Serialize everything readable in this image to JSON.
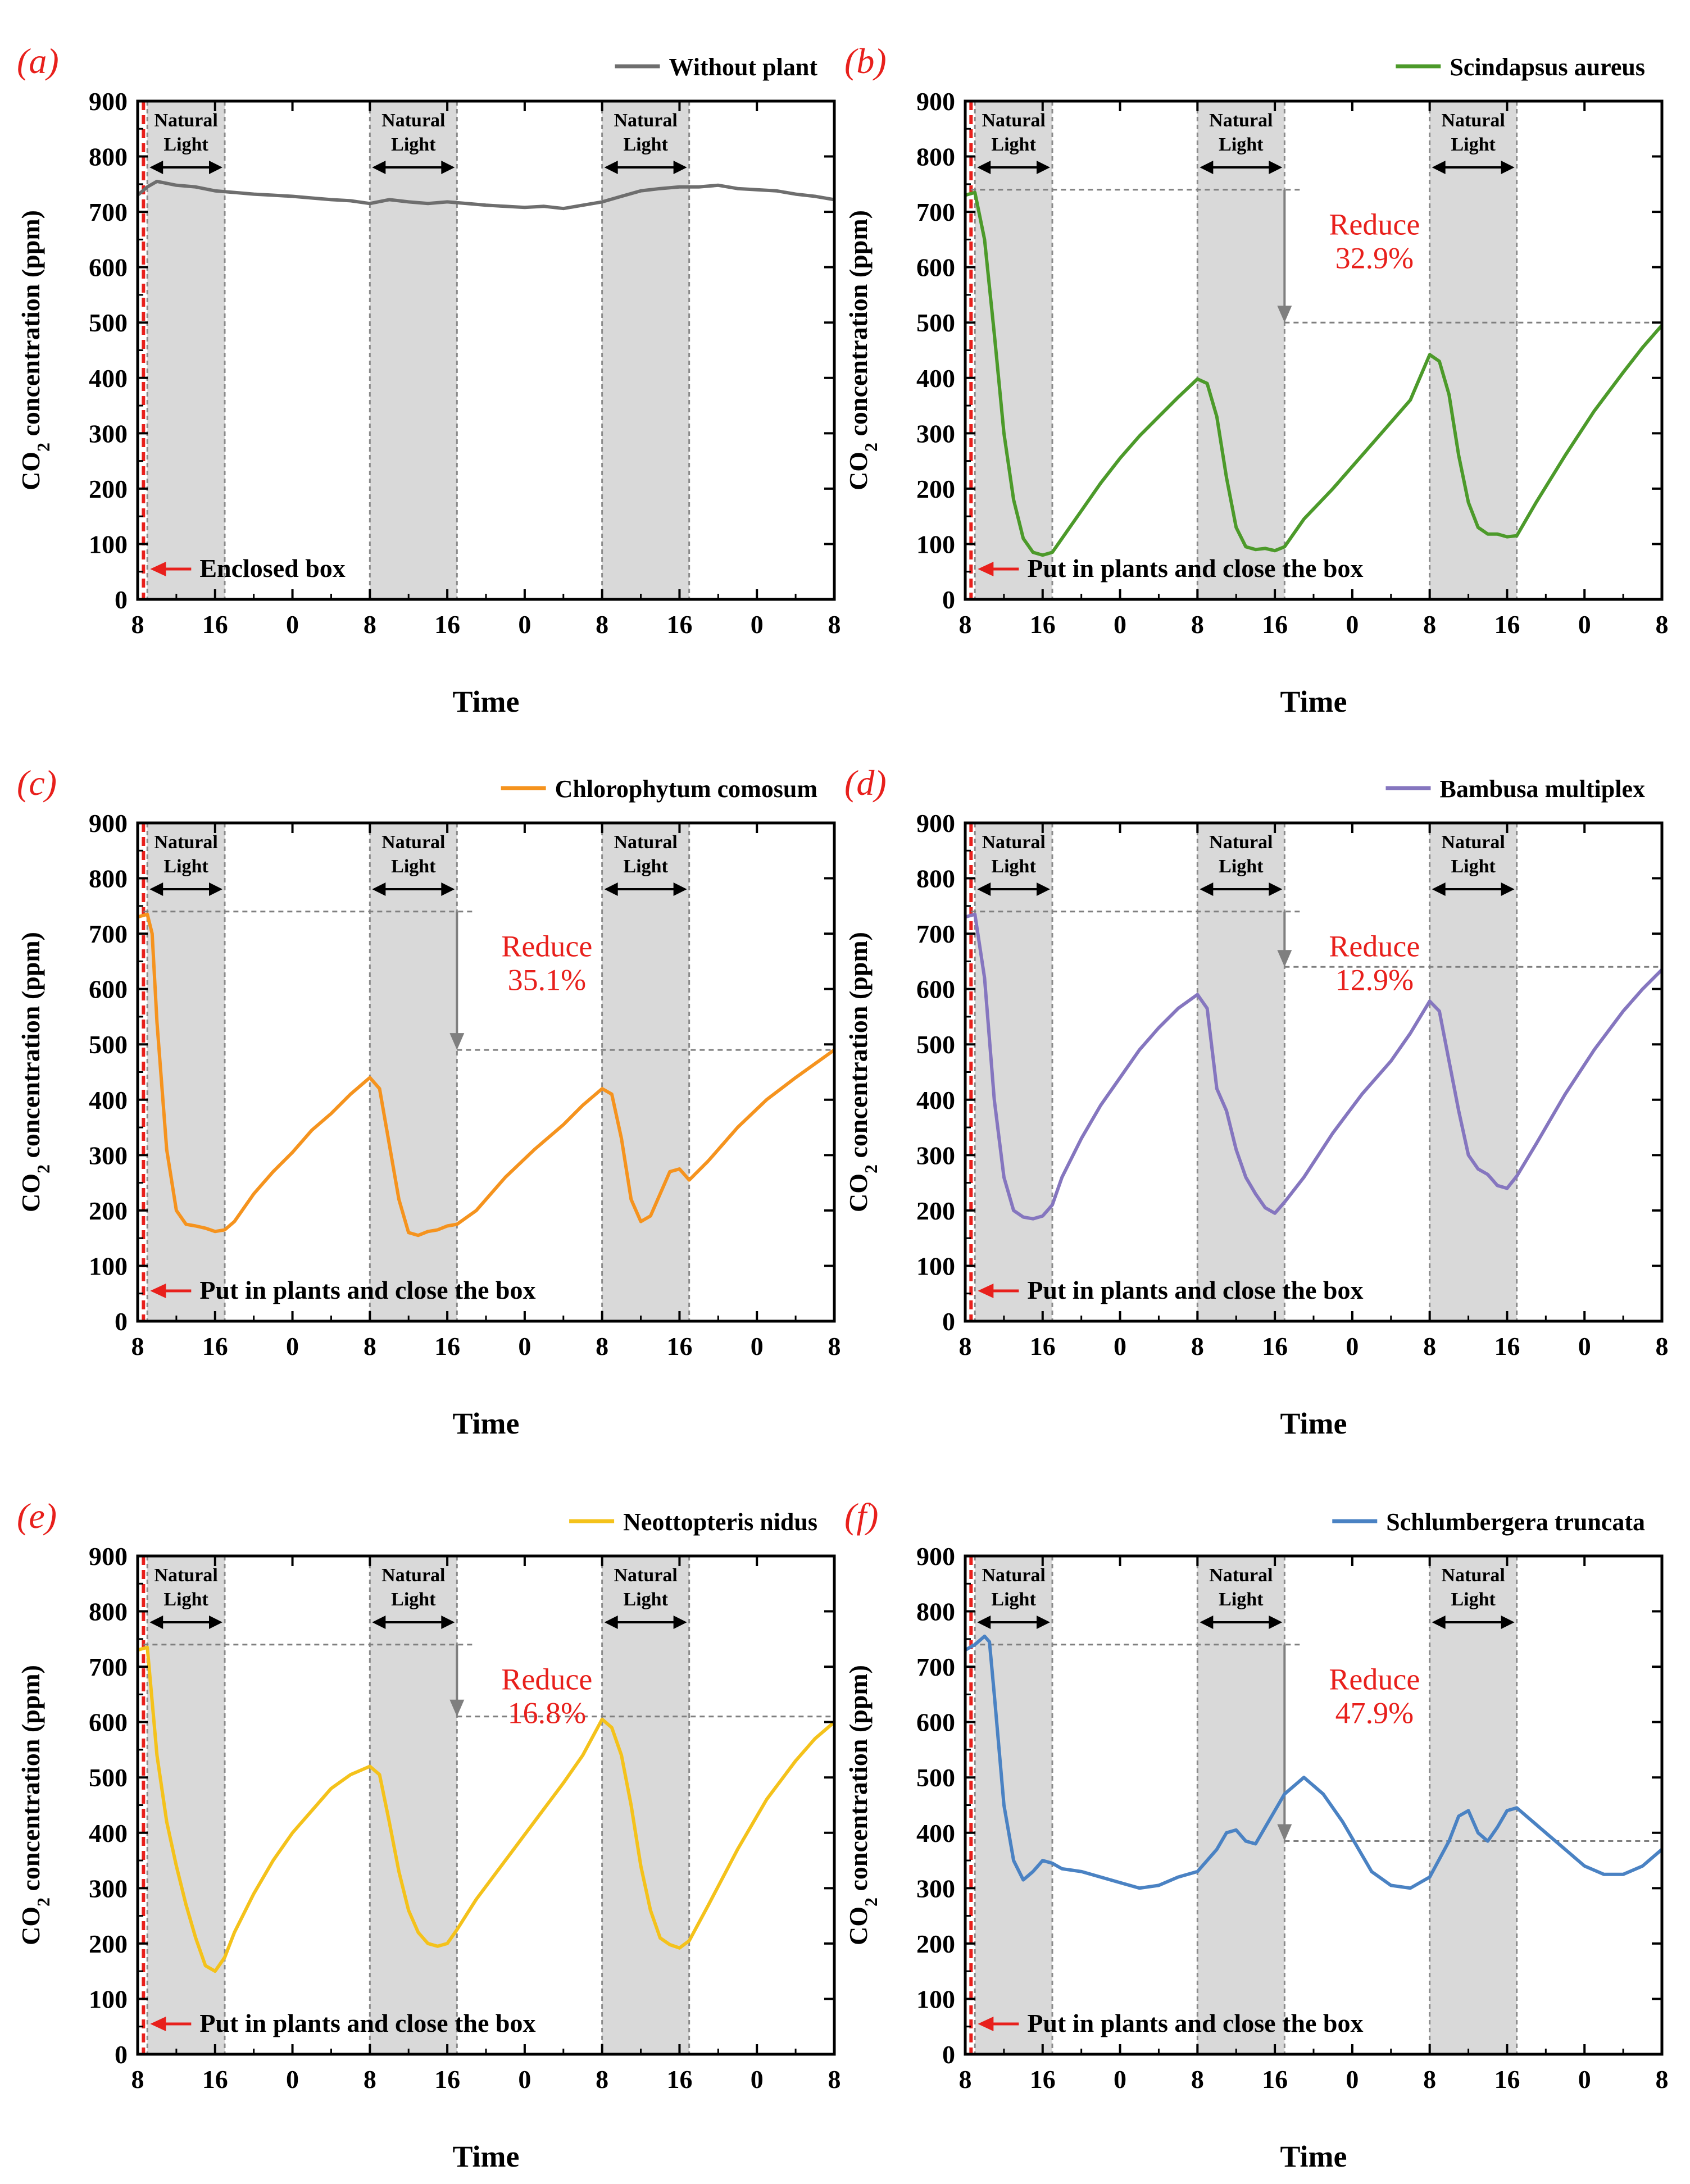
{
  "figure": {
    "common": {
      "ylabel_main": "CO",
      "ylabel_sub": "2",
      "ylabel_rest": " concentration  (ppm)",
      "xlabel": "Time",
      "light_label_1": "Natural",
      "light_label_2": "Light",
      "yticks": [
        0,
        100,
        200,
        300,
        400,
        500,
        600,
        700,
        800,
        900
      ],
      "xtick_labels": [
        "8",
        "16",
        "0",
        "8",
        "16",
        "0",
        "8",
        "16",
        "0",
        "8"
      ],
      "xtick_hours": [
        0,
        8,
        16,
        24,
        32,
        40,
        48,
        56,
        64,
        72
      ],
      "light_periods_hours": [
        [
          1,
          9
        ],
        [
          24,
          33
        ],
        [
          48,
          57
        ]
      ],
      "colors": {
        "marker": "#e8201c",
        "shade": "#d9d9d9",
        "guide": "#7f7f7f"
      }
    }
  },
  "chart_data": [
    {
      "type": "line",
      "panel": "(a)",
      "legend": "Without plant",
      "color": "#6e6e6e",
      "start_note": "Enclosed box",
      "xlabel": "Time",
      "ylabel": "CO2 concentration (ppm)",
      "ylim": [
        0,
        900
      ],
      "x_hours": [
        0,
        1,
        2,
        4,
        6,
        8,
        10,
        12,
        14,
        16,
        18,
        20,
        22,
        24,
        26,
        28,
        30,
        32,
        34,
        36,
        38,
        40,
        42,
        44,
        46,
        48,
        50,
        52,
        54,
        56,
        58,
        60,
        62,
        64,
        66,
        68,
        70,
        72
      ],
      "values": [
        730,
        745,
        755,
        748,
        745,
        738,
        735,
        732,
        730,
        728,
        725,
        722,
        720,
        715,
        722,
        718,
        715,
        718,
        715,
        712,
        710,
        708,
        710,
        706,
        712,
        718,
        728,
        738,
        742,
        745,
        745,
        748,
        742,
        740,
        738,
        732,
        728,
        722
      ],
      "reduce": null
    },
    {
      "type": "line",
      "panel": "(b)",
      "legend": "Scindapsus aureus",
      "color": "#4c9a2a",
      "start_note": "Put in plants and close the box",
      "xlabel": "Time",
      "ylabel": "CO2 concentration (ppm)",
      "ylim": [
        0,
        900
      ],
      "x_hours": [
        0,
        1,
        2,
        3,
        4,
        5,
        6,
        7,
        8,
        9,
        10,
        12,
        14,
        16,
        18,
        20,
        22,
        24,
        25,
        26,
        27,
        28,
        29,
        30,
        31,
        32,
        33,
        35,
        38,
        41,
        44,
        46,
        48,
        49,
        50,
        51,
        52,
        53,
        54,
        55,
        56,
        57,
        59,
        62,
        65,
        68,
        70,
        72
      ],
      "values": [
        730,
        735,
        650,
        480,
        300,
        180,
        110,
        85,
        80,
        85,
        110,
        160,
        210,
        255,
        295,
        330,
        365,
        398,
        390,
        330,
        220,
        130,
        95,
        90,
        92,
        88,
        95,
        145,
        200,
        260,
        320,
        360,
        442,
        430,
        370,
        260,
        175,
        130,
        118,
        118,
        113,
        115,
        175,
        260,
        340,
        410,
        455,
        495
      ],
      "reduce": {
        "label": "Reduce",
        "percent": "32.9%",
        "from_ppm": 740,
        "to_ppm": 500
      }
    },
    {
      "type": "line",
      "panel": "(c)",
      "legend": "Chlorophytum comosum",
      "color": "#f5931e",
      "start_note": "Put in plants and close the box",
      "xlabel": "Time",
      "ylabel": "CO2 concentration (ppm)",
      "ylim": [
        0,
        900
      ],
      "x_hours": [
        0,
        1,
        1.5,
        2,
        3,
        4,
        5,
        6,
        7,
        8,
        9,
        10,
        12,
        14,
        16,
        18,
        20,
        22,
        24,
        25,
        26,
        27,
        28,
        29,
        30,
        31,
        32,
        33,
        35,
        38,
        41,
        44,
        46,
        48,
        49,
        50,
        51,
        52,
        53,
        54,
        55,
        56,
        57,
        59,
        62,
        65,
        68,
        70,
        72
      ],
      "values": [
        730,
        735,
        700,
        540,
        310,
        200,
        175,
        172,
        168,
        162,
        165,
        180,
        230,
        270,
        305,
        345,
        375,
        410,
        440,
        420,
        320,
        220,
        160,
        155,
        162,
        165,
        172,
        175,
        200,
        260,
        310,
        355,
        390,
        420,
        410,
        330,
        220,
        180,
        190,
        230,
        270,
        275,
        255,
        290,
        350,
        400,
        440,
        465,
        490
      ],
      "reduce": {
        "label": "Reduce",
        "percent": "35.1%",
        "from_ppm": 740,
        "to_ppm": 490
      }
    },
    {
      "type": "line",
      "panel": "(d)",
      "legend": "Bambusa multiplex",
      "color": "#8576bf",
      "start_note": "Put in plants and close the box",
      "xlabel": "Time",
      "ylabel": "CO2 concentration (ppm)",
      "ylim": [
        0,
        900
      ],
      "x_hours": [
        0,
        1,
        2,
        3,
        4,
        5,
        6,
        7,
        8,
        9,
        10,
        12,
        14,
        16,
        18,
        20,
        22,
        24,
        25,
        26,
        27,
        28,
        29,
        30,
        31,
        32,
        33,
        35,
        38,
        41,
        44,
        46,
        48,
        49,
        50,
        51,
        52,
        53,
        54,
        55,
        56,
        57,
        59,
        62,
        65,
        68,
        70,
        72
      ],
      "values": [
        730,
        735,
        620,
        400,
        260,
        200,
        188,
        185,
        190,
        210,
        260,
        330,
        390,
        440,
        490,
        530,
        565,
        590,
        565,
        420,
        380,
        310,
        260,
        230,
        205,
        195,
        215,
        260,
        340,
        410,
        470,
        520,
        578,
        560,
        470,
        380,
        300,
        275,
        265,
        245,
        240,
        262,
        320,
        410,
        490,
        560,
        600,
        635
      ],
      "reduce": {
        "label": "Reduce",
        "percent": "12.9%",
        "from_ppm": 740,
        "to_ppm": 640
      }
    },
    {
      "type": "line",
      "panel": "(e)",
      "legend": "Neottopteris nidus",
      "color": "#f4c21b",
      "start_note": "Put in plants and close the box",
      "xlabel": "Time",
      "ylabel": "CO2 concentration (ppm)",
      "ylim": [
        0,
        900
      ],
      "x_hours": [
        0,
        1,
        2,
        3,
        4,
        5,
        6,
        7,
        8,
        9,
        10,
        12,
        14,
        16,
        18,
        20,
        22,
        24,
        25,
        26,
        27,
        28,
        29,
        30,
        31,
        32,
        33,
        35,
        38,
        41,
        44,
        46,
        48,
        49,
        50,
        51,
        52,
        53,
        54,
        55,
        56,
        57,
        59,
        62,
        65,
        68,
        70,
        72
      ],
      "values": [
        730,
        735,
        540,
        420,
        340,
        270,
        210,
        160,
        150,
        175,
        220,
        290,
        350,
        400,
        440,
        480,
        505,
        520,
        505,
        420,
        330,
        260,
        220,
        200,
        195,
        200,
        225,
        280,
        350,
        420,
        490,
        540,
        605,
        590,
        540,
        450,
        340,
        260,
        210,
        198,
        192,
        205,
        270,
        370,
        460,
        530,
        570,
        600
      ],
      "reduce": {
        "label": "Reduce",
        "percent": "16.8%",
        "from_ppm": 740,
        "to_ppm": 610
      }
    },
    {
      "type": "line",
      "panel": "(f)",
      "legend": "Schlumbergera truncata",
      "color": "#4a82c3",
      "start_note": "Put in plants and close the box",
      "xlabel": "Time",
      "ylabel": "CO2 concentration (ppm)",
      "ylim": [
        0,
        900
      ],
      "x_hours": [
        0,
        1,
        2,
        2.5,
        3,
        4,
        5,
        6,
        7,
        8,
        9,
        10,
        12,
        14,
        16,
        18,
        20,
        22,
        24,
        26,
        27,
        28,
        29,
        30,
        31,
        33,
        35,
        37,
        39,
        41,
        42,
        44,
        46,
        48,
        50,
        51,
        52,
        53,
        54,
        55,
        56,
        57,
        58,
        60,
        62,
        64,
        66,
        68,
        70,
        72
      ],
      "values": [
        730,
        740,
        755,
        745,
        650,
        450,
        350,
        315,
        330,
        350,
        345,
        335,
        330,
        320,
        310,
        300,
        305,
        320,
        330,
        370,
        400,
        405,
        385,
        380,
        410,
        470,
        500,
        470,
        420,
        360,
        330,
        305,
        300,
        320,
        385,
        430,
        440,
        400,
        385,
        410,
        440,
        445,
        430,
        400,
        370,
        340,
        325,
        325,
        340,
        370
      ],
      "reduce": {
        "label": "Reduce",
        "percent": "47.9%",
        "from_ppm": 740,
        "to_ppm": 385
      }
    }
  ]
}
